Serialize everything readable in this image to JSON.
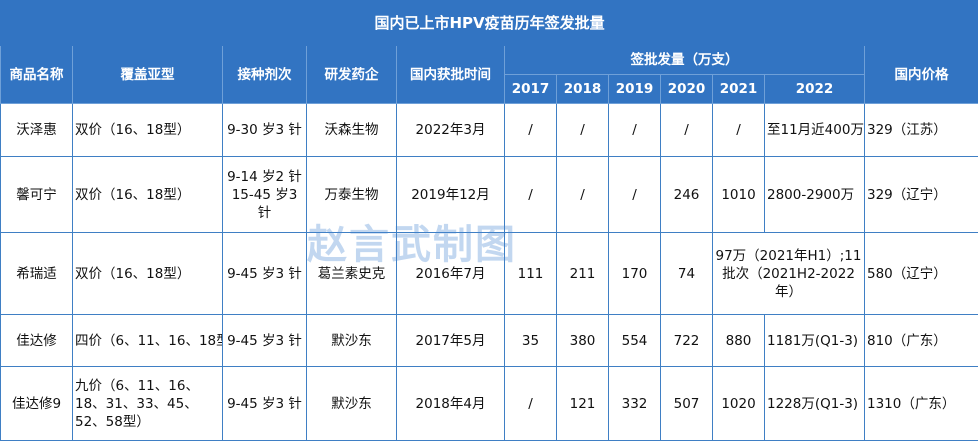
{
  "title": "国内已上市HPV疫苗历年签发批量",
  "headers": {
    "product": "商品名称",
    "subtypes": "覆盖亚型",
    "schedule": "接种剂次",
    "company": "研发药企",
    "approval": "国内获批时间",
    "batches": "签批发量（万支）",
    "years": [
      "2017",
      "2018",
      "2019",
      "2020",
      "2021",
      "2022"
    ],
    "price": "国内价格"
  },
  "rows": [
    {
      "product": "沃泽惠",
      "subtypes": "双价（16、18型）",
      "schedule": "9-30 岁3 针",
      "company": "沃森生物",
      "approval": "2022年3月",
      "y2017": "/",
      "y2018": "/",
      "y2019": "/",
      "y2020": "/",
      "y2021": "/",
      "y2022": "至11月近400万",
      "price": "329（江苏）"
    },
    {
      "product": "馨可宁",
      "subtypes": "双价（16、18型）",
      "schedule": "9-14 岁2 针 15-45 岁3 针",
      "company": "万泰生物",
      "approval": "2019年12月",
      "y2017": "/",
      "y2018": "/",
      "y2019": "/",
      "y2020": "246",
      "y2021": "1010",
      "y2022": "2800-2900万",
      "price": "329（辽宁）"
    },
    {
      "product": "希瑞适",
      "subtypes": "双价（16、18型）",
      "schedule": "9-45 岁3 针",
      "company": "葛兰素史克",
      "approval": "2016年7月",
      "y2017": "111",
      "y2018": "211",
      "y2019": "170",
      "y2020": "74",
      "y2021_y2022": "97万（2021年H1）;11批次（2021H2-2022年）",
      "price": "580（辽宁）"
    },
    {
      "product": "佳达修",
      "subtypes": "四价（6、11、16、18型）",
      "schedule": "9-45 岁3 针",
      "company": "默沙东",
      "approval": "2017年5月",
      "y2017": "35",
      "y2018": "380",
      "y2019": "554",
      "y2020": "722",
      "y2021": "880",
      "y2022": "1181万(Q1-3)",
      "price": "810（广东）"
    },
    {
      "product": "佳达修9",
      "subtypes": "九价（6、11、16、18、31、33、45、52、58型）",
      "schedule": "9-45 岁3 针",
      "company": "默沙东",
      "approval": "2018年4月",
      "y2017": "/",
      "y2018": "121",
      "y2019": "332",
      "y2020": "507",
      "y2021": "1020",
      "y2022": "1228万(Q1-3)",
      "price": "1310（广东）"
    }
  ],
  "watermark": "赵言武制图"
}
